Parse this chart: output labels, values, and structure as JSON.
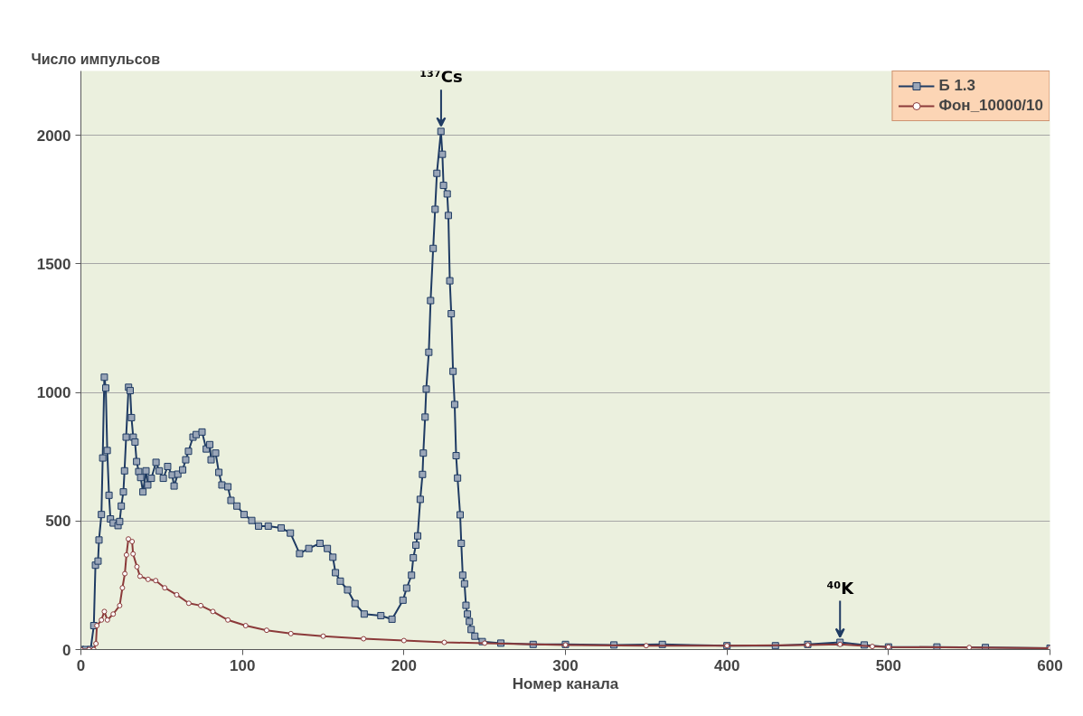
{
  "chart_data": {
    "type": "line",
    "xlabel": "Номер канала",
    "ylabel": "Число импульсов",
    "xlim": [
      0,
      600
    ],
    "ylim": [
      0,
      2250
    ],
    "xticks": [
      0,
      100,
      200,
      300,
      400,
      500,
      600
    ],
    "yticks": [
      0,
      500,
      1000,
      1500,
      2000
    ],
    "grid": "y",
    "legend": "top right",
    "annotations": [
      {
        "text": "¹³⁷Cs",
        "x": 223,
        "y": 2015
      },
      {
        "text": "⁴⁰K",
        "x": 470,
        "y": 28
      }
    ],
    "series": [
      {
        "name": "Б 1.3",
        "color": "#1f3b63",
        "marker": "square",
        "x": [
          0,
          3,
          6,
          8,
          9,
          10.6,
          11.2,
          12.7,
          13.5,
          14.5,
          15.4,
          16.3,
          17.4,
          18.3,
          20,
          23,
          24,
          25,
          26.3,
          27,
          28,
          29.5,
          30.5,
          31.3,
          32.4,
          33.5,
          34.5,
          35.8,
          37,
          38.4,
          40.3,
          41.4,
          43.6,
          46.5,
          48.5,
          51,
          53.7,
          56.5,
          57.7,
          60,
          63,
          64.9,
          66.6,
          69.4,
          71.4,
          75,
          77.6,
          79.8,
          80.6,
          83.4,
          85.4,
          87.3,
          91,
          92.9,
          96.6,
          101,
          105.8,
          110,
          116,
          124,
          129.7,
          135.4,
          141.1,
          148,
          152.6,
          156,
          157.6,
          160.6,
          165.1,
          169.7,
          175.4,
          185.7,
          192.6,
          199.4,
          201.7,
          204.7,
          205.8,
          207.4,
          208.5,
          210.1,
          211.5,
          212,
          213.1,
          213.8,
          215.4,
          216.5,
          218.1,
          219.3,
          220.4,
          222.9,
          223.8,
          224.5,
          226.8,
          227.5,
          228.4,
          229.3,
          230.4,
          231.4,
          232.3,
          233.2,
          234.8,
          235.5,
          236.4,
          237.5,
          238.4,
          239.3,
          240.5,
          241.6,
          243.9,
          248.5,
          260,
          280,
          300,
          330,
          360,
          400,
          430,
          450,
          470,
          485,
          500,
          530,
          560,
          600
        ],
        "values": [
          0,
          0,
          0,
          93,
          328,
          344,
          426,
          525,
          745,
          1059,
          1017,
          774,
          600,
          508,
          492,
          482,
          498,
          558,
          613,
          695,
          826,
          1020,
          1007,
          902,
          826,
          807,
          731,
          692,
          669,
          613,
          695,
          640,
          666,
          728,
          695,
          666,
          712,
          679,
          636,
          682,
          699,
          738,
          771,
          826,
          836,
          846,
          780,
          797,
          738,
          764,
          689,
          640,
          633,
          580,
          558,
          525,
          502,
          480,
          480,
          473,
          453,
          373,
          393,
          413,
          393,
          359,
          299,
          266,
          232,
          179,
          138,
          132,
          118,
          192,
          239,
          289,
          357,
          406,
          442,
          584,
          681,
          764,
          904,
          1013,
          1156,
          1357,
          1560,
          1712,
          1852,
          2015,
          1926,
          1805,
          1772,
          1688,
          1434,
          1306,
          1082,
          953,
          754,
          667,
          524,
          413,
          289,
          256,
          172,
          138,
          109,
          78,
          52,
          31,
          25,
          20,
          20,
          18,
          20,
          15,
          15,
          20,
          28,
          18,
          10,
          10,
          8,
          5
        ]
      },
      {
        "name": "Фон_10000/10",
        "color": "#8b3a3a",
        "marker": "circle",
        "x": [
          0,
          5,
          8,
          9.3,
          9.9,
          12.7,
          14.5,
          16.4,
          20,
          24,
          25.7,
          27.2,
          28.2,
          29.4,
          31.7,
          32.3,
          34.7,
          36.6,
          41.6,
          46.3,
          51.9,
          59.3,
          66.8,
          74.2,
          81.7,
          91,
          102,
          115,
          130,
          150,
          175,
          200,
          225,
          250,
          300,
          350,
          400,
          450,
          470,
          490,
          500,
          550,
          600
        ],
        "values": [
          0,
          0,
          0,
          23,
          93,
          115,
          148,
          115,
          138,
          171,
          240,
          295,
          368,
          430,
          420,
          372,
          322,
          285,
          273,
          268,
          240,
          213,
          180,
          171,
          148,
          115,
          93,
          75,
          62,
          52,
          42,
          35,
          28,
          25,
          18,
          15,
          15,
          18,
          20,
          12,
          10,
          8,
          5
        ]
      }
    ]
  }
}
